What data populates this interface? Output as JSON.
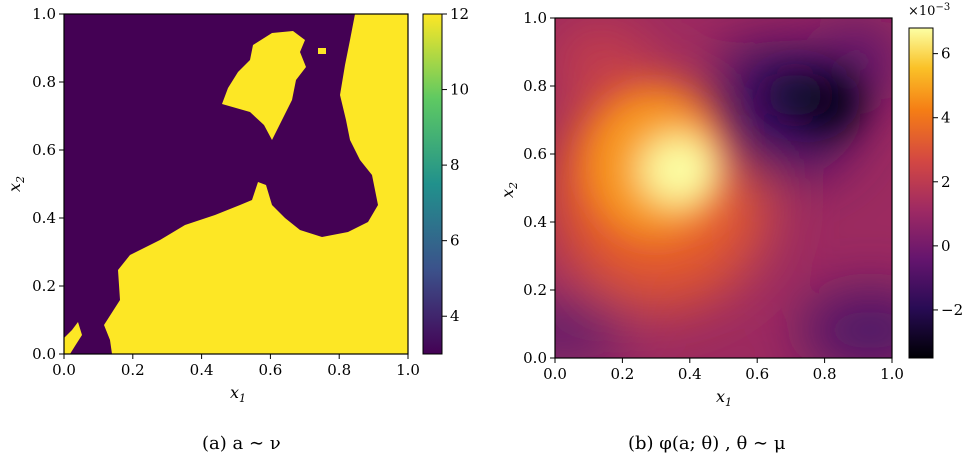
{
  "chart_data": [
    {
      "type": "heatmap",
      "xlabel": "x",
      "xlabel_sub": "1",
      "ylabel": "x",
      "ylabel_sub": "2",
      "xlim": [
        0.0,
        1.0
      ],
      "ylim": [
        0.0,
        1.0
      ],
      "xticks": [
        "0.0",
        "0.2",
        "0.4",
        "0.6",
        "0.8",
        "1.0"
      ],
      "yticks": [
        "0.0",
        "0.2",
        "0.4",
        "0.6",
        "0.8",
        "1.0"
      ],
      "colorbar": {
        "min": 3,
        "max": 12,
        "ticks": [
          "4",
          "6",
          "8",
          "10",
          "12"
        ],
        "colormap": "viridis"
      },
      "values": {
        "low": 3,
        "high": 12
      },
      "caption": "(a) a ∼ ν"
    },
    {
      "type": "heatmap",
      "xlabel": "x",
      "xlabel_sub": "1",
      "ylabel": "x",
      "ylabel_sub": "2",
      "xlim": [
        0.0,
        1.0
      ],
      "ylim": [
        0.0,
        1.0
      ],
      "xticks": [
        "0.0",
        "0.2",
        "0.4",
        "0.6",
        "0.8",
        "1.0"
      ],
      "yticks": [
        "0.0",
        "0.2",
        "0.4",
        "0.6",
        "0.8",
        "1.0"
      ],
      "colorbar": {
        "min": -3.5,
        "max": 6.8,
        "ticks": [
          "−2",
          "0",
          "2",
          "4",
          "6"
        ],
        "multiplier": "×10",
        "multiplier_exp": "−3",
        "colormap": "inferno"
      },
      "peaks": [
        {
          "x": 0.35,
          "y": 0.55,
          "value": 6.5
        },
        {
          "x": 0.83,
          "y": 0.73,
          "value": -3.4
        }
      ],
      "caption": "(b) φ(a; θ) ,  θ ∼ μ"
    }
  ]
}
